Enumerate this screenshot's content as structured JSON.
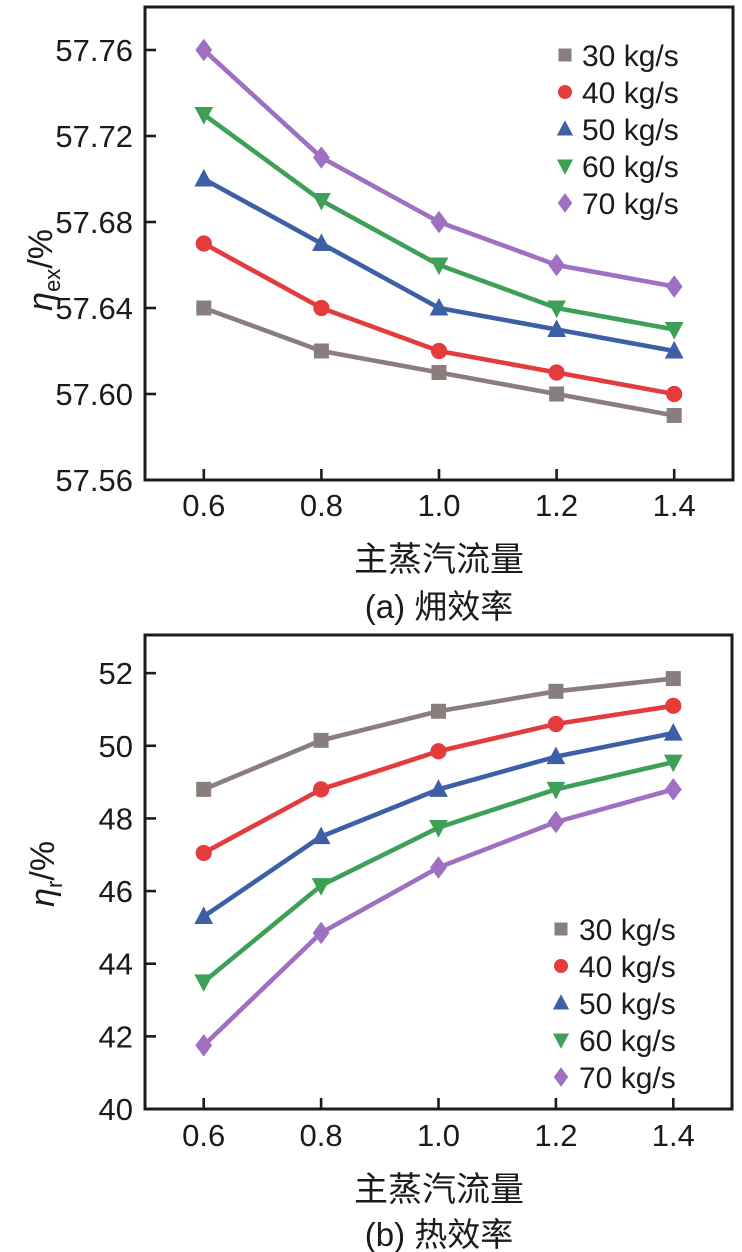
{
  "chart_data": [
    {
      "id": "a",
      "type": "line",
      "ylabel": {
        "base": "η",
        "sub": "ex",
        "unit": "/%"
      },
      "xlabel": "主蒸汽流量",
      "caption": {
        "prefix": "(a)",
        "text": "㶲效率"
      },
      "x": [
        0.6,
        0.8,
        1.0,
        1.2,
        1.4
      ],
      "xtick_labels": [
        "0.6",
        "0.8",
        "1.0",
        "1.2",
        "1.4"
      ],
      "yticks": [
        57.56,
        57.6,
        57.64,
        57.68,
        57.72,
        57.76
      ],
      "ytick_labels": [
        "57.56",
        "57.60",
        "57.64",
        "57.68",
        "57.72",
        "57.76"
      ],
      "xlim": [
        0.5,
        1.5
      ],
      "ylim": [
        57.56,
        57.78
      ],
      "grid": false,
      "legend_position": "top-right",
      "series": [
        {
          "name": "30 kg/s",
          "marker": "square",
          "color": "#897e7d",
          "values": [
            57.64,
            57.62,
            57.61,
            57.6,
            57.59
          ]
        },
        {
          "name": "40 kg/s",
          "marker": "circle",
          "color": "#e43b3c",
          "values": [
            57.67,
            57.64,
            57.62,
            57.61,
            57.6
          ]
        },
        {
          "name": "50 kg/s",
          "marker": "triangle-up",
          "color": "#3c5fa6",
          "values": [
            57.7,
            57.67,
            57.64,
            57.63,
            57.62
          ]
        },
        {
          "name": "60 kg/s",
          "marker": "triangle-down",
          "color": "#3ea057",
          "values": [
            57.73,
            57.69,
            57.66,
            57.64,
            57.63
          ]
        },
        {
          "name": "70 kg/s",
          "marker": "diamond",
          "color": "#9f70c2",
          "values": [
            57.76,
            57.71,
            57.68,
            57.66,
            57.65
          ]
        }
      ]
    },
    {
      "id": "b",
      "type": "line",
      "ylabel": {
        "base": "η",
        "sub": "r",
        "unit": "/%"
      },
      "xlabel": "主蒸汽流量",
      "caption": {
        "prefix": "(b)",
        "text": "热效率"
      },
      "x": [
        0.6,
        0.8,
        1.0,
        1.2,
        1.4
      ],
      "xtick_labels": [
        "0.6",
        "0.8",
        "1.0",
        "1.2",
        "1.4"
      ],
      "yticks": [
        40,
        42,
        44,
        46,
        48,
        50,
        52
      ],
      "ytick_labels": [
        "40",
        "42",
        "44",
        "46",
        "48",
        "50",
        "52"
      ],
      "xlim": [
        0.5,
        1.5
      ],
      "ylim": [
        40,
        53.05
      ],
      "grid": false,
      "legend_position": "bottom-right",
      "series": [
        {
          "name": "30 kg/s",
          "marker": "square",
          "color": "#897e7d",
          "values": [
            48.8,
            50.15,
            50.95,
            51.5,
            51.85
          ]
        },
        {
          "name": "40 kg/s",
          "marker": "circle",
          "color": "#e43b3c",
          "values": [
            47.05,
            48.8,
            49.85,
            50.6,
            51.1
          ]
        },
        {
          "name": "50 kg/s",
          "marker": "triangle-up",
          "color": "#3c5fa6",
          "values": [
            45.3,
            47.5,
            48.8,
            49.7,
            50.35
          ]
        },
        {
          "name": "60 kg/s",
          "marker": "triangle-down",
          "color": "#3ea057",
          "values": [
            43.5,
            46.15,
            47.75,
            48.8,
            49.55
          ]
        },
        {
          "name": "70 kg/s",
          "marker": "diamond",
          "color": "#9f70c2",
          "values": [
            41.75,
            44.85,
            46.65,
            47.9,
            48.8
          ]
        }
      ]
    }
  ],
  "ink_color": "#1c1a1a"
}
